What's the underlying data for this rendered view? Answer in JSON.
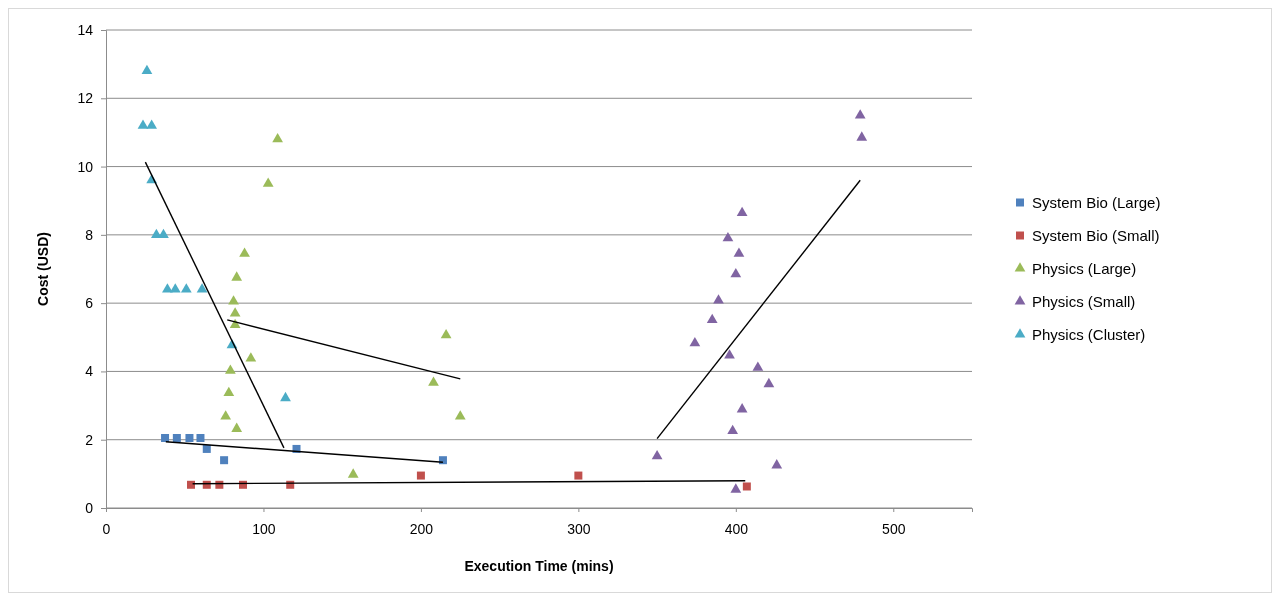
{
  "chart_data": {
    "type": "scatter",
    "xlabel": "Execution Time (mins)",
    "ylabel": "Cost (USD)",
    "xlim": [
      0,
      550
    ],
    "ylim": [
      0,
      14
    ],
    "xticks": [
      0,
      100,
      200,
      300,
      400,
      500
    ],
    "yticks": [
      0,
      2,
      4,
      6,
      8,
      10,
      12,
      14
    ],
    "grid": "y",
    "legend": "right",
    "series": [
      {
        "name": "System Bio (Large)",
        "color": "#4f81bd",
        "marker": "square",
        "x": [
          37.5,
          45,
          53,
          60,
          64,
          75,
          121,
          214
        ],
        "values": [
          2.05,
          2.05,
          2.05,
          2.05,
          1.73,
          1.4,
          1.73,
          1.4
        ]
      },
      {
        "name": "System Bio (Small)",
        "color": "#c0504d",
        "marker": "square",
        "x": [
          54,
          64,
          72,
          87,
          117,
          200,
          300,
          407
        ],
        "values": [
          0.68,
          0.68,
          0.68,
          0.68,
          0.68,
          0.95,
          0.95,
          0.63
        ]
      },
      {
        "name": "Physics (Large)",
        "color": "#9bbb59",
        "marker": "triangle",
        "x": [
          109,
          103,
          88,
          83,
          81,
          82,
          82,
          92,
          79,
          78,
          76,
          83,
          216,
          208,
          225,
          157
        ],
        "values": [
          10.8,
          9.5,
          7.45,
          6.75,
          6.05,
          5.7,
          5.36,
          4.38,
          4.02,
          3.37,
          2.68,
          2.32,
          5.06,
          3.67,
          2.68,
          0.98
        ]
      },
      {
        "name": "Physics (Small)",
        "color": "#8064a2",
        "marker": "triangle",
        "x": [
          479,
          480,
          404,
          395,
          402,
          400,
          389,
          385,
          374,
          396,
          414,
          421,
          404,
          398,
          350,
          426,
          400
        ],
        "values": [
          11.5,
          10.85,
          8.64,
          7.9,
          7.45,
          6.85,
          6.08,
          5.51,
          4.83,
          4.47,
          4.11,
          3.63,
          2.89,
          2.26,
          1.52,
          1.25,
          0.54
        ]
      },
      {
        "name": "Physics (Cluster)",
        "color": "#4bacc6",
        "marker": "triangle",
        "x": [
          26,
          23.5,
          29,
          29,
          32,
          36.5,
          39,
          44,
          51,
          61,
          80,
          114
        ],
        "values": [
          12.8,
          11.2,
          11.2,
          9.6,
          8.0,
          8.0,
          6.4,
          6.4,
          6.4,
          6.4,
          4.77,
          3.22
        ]
      },
      {
        "type": "line",
        "color": "#000000",
        "marker": "none",
        "x": [
          38,
          214
        ],
        "values": [
          1.94,
          1.34
        ]
      },
      {
        "type": "line",
        "color": "#000000",
        "marker": "none",
        "x": [
          55,
          406
        ],
        "values": [
          0.71,
          0.8
        ]
      },
      {
        "type": "line",
        "color": "#000000",
        "marker": "none",
        "x": [
          77,
          225
        ],
        "values": [
          5.51,
          3.78
        ]
      },
      {
        "type": "line",
        "color": "#000000",
        "marker": "none",
        "x": [
          350,
          479
        ],
        "values": [
          2.03,
          9.6
        ]
      },
      {
        "type": "line",
        "color": "#000000",
        "marker": "none",
        "x": [
          25,
          113
        ],
        "values": [
          10.13,
          1.76
        ]
      }
    ]
  }
}
